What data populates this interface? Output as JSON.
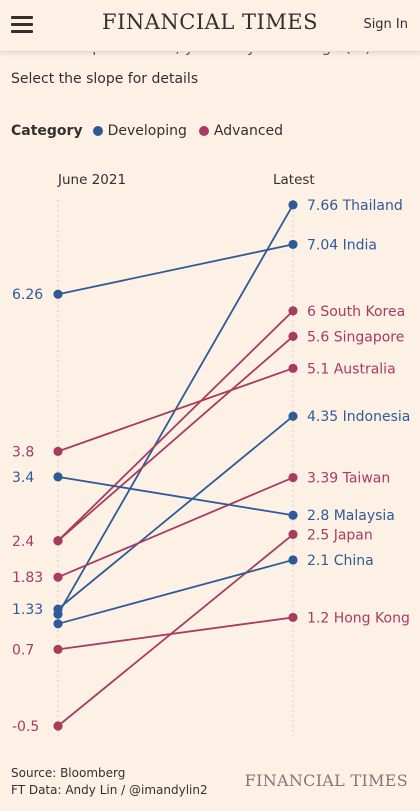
{
  "header": {
    "brand": "FINANCIAL TIMES",
    "sign_in": "Sign In",
    "menu_icon": "hamburger-menu-icon"
  },
  "subtitle_clipped": "Consumer price index, year-on-year change (%)",
  "instruction": "Select the slope for details",
  "legend": {
    "title": "Category",
    "items": [
      {
        "label": "Developing",
        "color": "#2e5b97"
      },
      {
        "label": "Advanced",
        "color": "#a83b5f"
      }
    ]
  },
  "columns": {
    "left": "June 2021",
    "right": "Latest"
  },
  "colors": {
    "Developing": "#2e5b97",
    "Advanced": "#a83b5f",
    "background": "#fdf1e6"
  },
  "chart_data": {
    "type": "slope",
    "x": [
      "June 2021",
      "Latest"
    ],
    "ylim": [
      -0.5,
      7.66
    ],
    "series": [
      {
        "name": "Thailand",
        "category": "Developing",
        "values": [
          1.25,
          7.66
        ]
      },
      {
        "name": "India",
        "category": "Developing",
        "values": [
          6.26,
          7.04
        ]
      },
      {
        "name": "South Korea",
        "category": "Advanced",
        "values": [
          2.4,
          6
        ]
      },
      {
        "name": "Singapore",
        "category": "Advanced",
        "values": [
          2.4,
          5.6
        ]
      },
      {
        "name": "Australia",
        "category": "Advanced",
        "values": [
          3.8,
          5.1
        ]
      },
      {
        "name": "Indonesia",
        "category": "Developing",
        "values": [
          1.33,
          4.35
        ]
      },
      {
        "name": "Taiwan",
        "category": "Advanced",
        "values": [
          1.83,
          3.39
        ]
      },
      {
        "name": "Malaysia",
        "category": "Developing",
        "values": [
          3.4,
          2.8
        ]
      },
      {
        "name": "Japan",
        "category": "Advanced",
        "values": [
          -0.5,
          2.5
        ]
      },
      {
        "name": "China",
        "category": "Developing",
        "values": [
          1.1,
          2.1
        ]
      },
      {
        "name": "Hong Kong",
        "category": "Advanced",
        "values": [
          0.7,
          1.2
        ]
      }
    ],
    "left_labels": [
      {
        "text": "6.26",
        "value": 6.26,
        "category": "Developing"
      },
      {
        "text": "3.8",
        "value": 3.8,
        "category": "Advanced"
      },
      {
        "text": "3.4",
        "value": 3.4,
        "category": "Developing"
      },
      {
        "text": "2.4",
        "value": 2.4,
        "category": "Advanced"
      },
      {
        "text": "1.83",
        "value": 1.83,
        "category": "Advanced"
      },
      {
        "text": "1.33",
        "value": 1.33,
        "category": "Developing"
      },
      {
        "text": "0.7",
        "value": 0.7,
        "category": "Advanced"
      },
      {
        "text": "-0.5",
        "value": -0.5,
        "category": "Advanced"
      }
    ],
    "right_labels": [
      {
        "text": "7.66 Thailand",
        "value": 7.66,
        "category": "Developing"
      },
      {
        "text": "7.04 India",
        "value": 7.04,
        "category": "Developing"
      },
      {
        "text": "6 South Korea",
        "value": 6,
        "category": "Advanced"
      },
      {
        "text": "5.6 Singapore",
        "value": 5.6,
        "category": "Advanced"
      },
      {
        "text": "5.1 Australia",
        "value": 5.1,
        "category": "Advanced"
      },
      {
        "text": "4.35 Indonesia",
        "value": 4.35,
        "category": "Developing"
      },
      {
        "text": "3.39 Taiwan",
        "value": 3.39,
        "category": "Advanced"
      },
      {
        "text": "2.8 Malaysia",
        "value": 2.8,
        "category": "Developing"
      },
      {
        "text": "2.5 Japan",
        "value": 2.5,
        "category": "Advanced"
      },
      {
        "text": "2.1 China",
        "value": 2.1,
        "category": "Developing"
      },
      {
        "text": "1.2 Hong Kong",
        "value": 1.2,
        "category": "Advanced"
      }
    ]
  },
  "footer": {
    "source": "Source: Bloomberg",
    "credit": "FT Data: Andy Lin / @imandylin2",
    "brand": "FINANCIAL TIMES"
  }
}
